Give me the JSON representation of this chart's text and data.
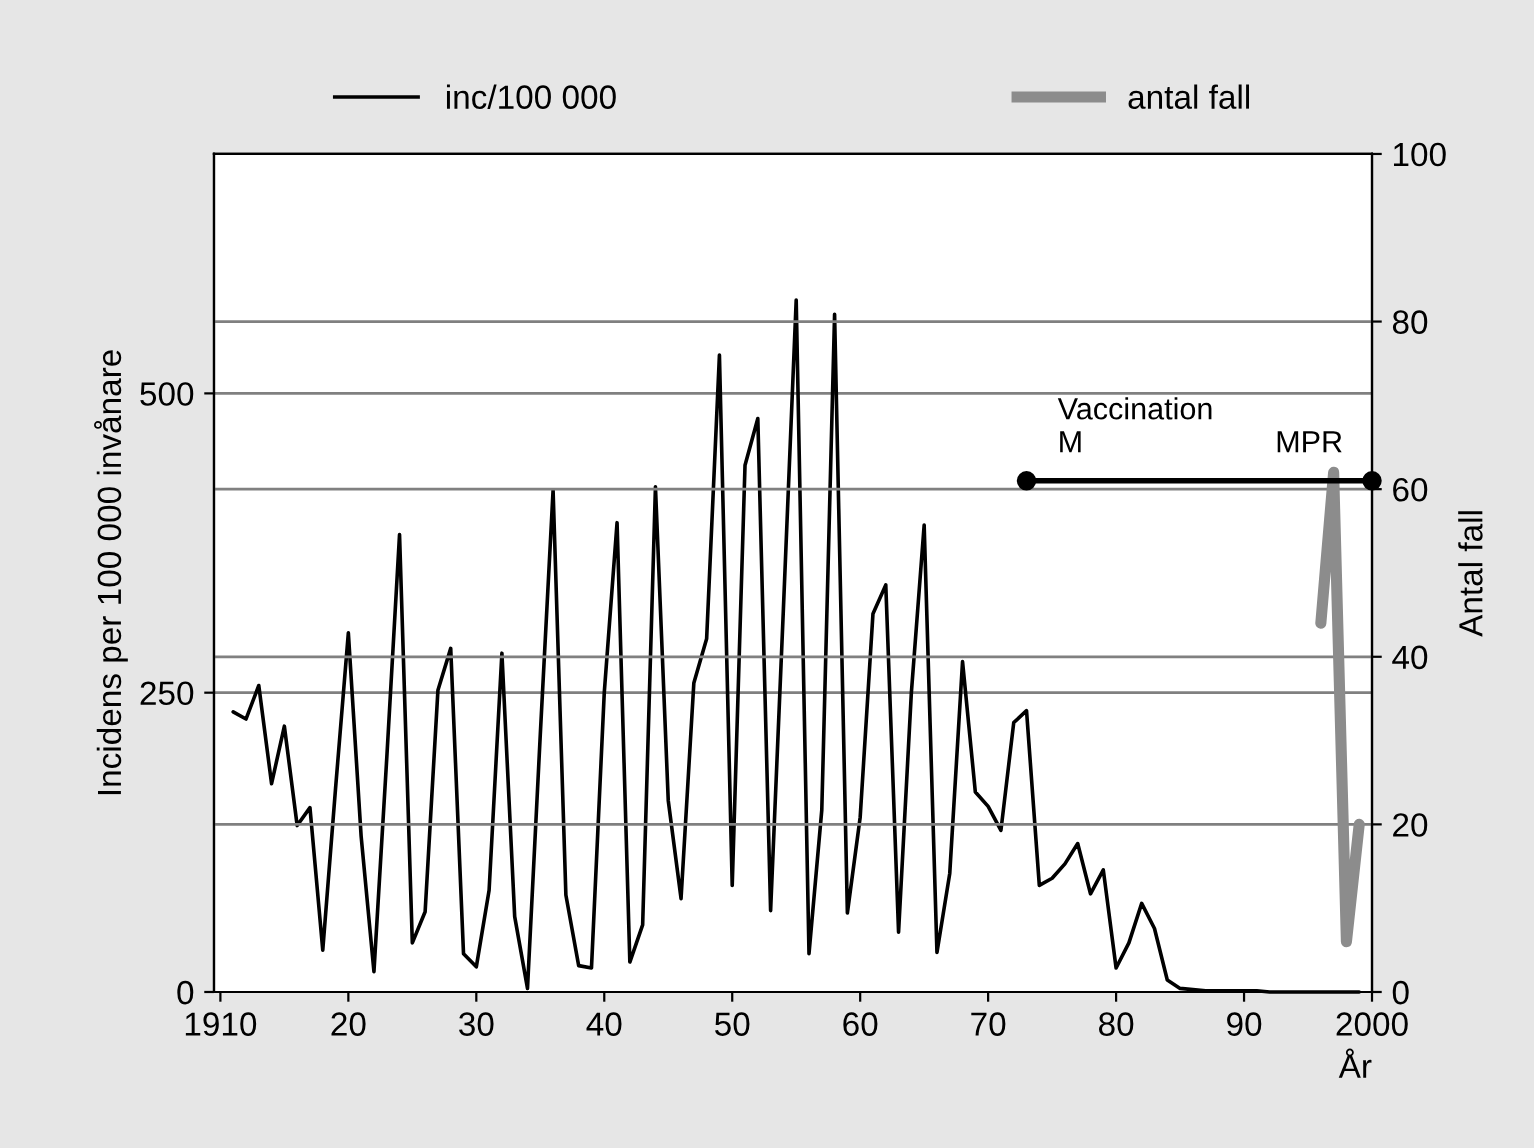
{
  "chart_data": {
    "type": "line",
    "ylabel": "Incidens per 100 000 invånare",
    "y2label": "Antal fall",
    "xlabel": "År",
    "xlim": [
      1909.5,
      2000
    ],
    "xticks": [
      {
        "value": 1910,
        "label": "1910"
      },
      {
        "value": 1920,
        "label": "20"
      },
      {
        "value": 1930,
        "label": "30"
      },
      {
        "value": 1940,
        "label": "40"
      },
      {
        "value": 1950,
        "label": "50"
      },
      {
        "value": 1960,
        "label": "60"
      },
      {
        "value": 1970,
        "label": "70"
      },
      {
        "value": 1980,
        "label": "80"
      },
      {
        "value": 1990,
        "label": "90"
      },
      {
        "value": 2000,
        "label": "2000"
      }
    ],
    "ylim": [
      0,
      700
    ],
    "yticks": [
      0,
      250,
      500
    ],
    "y2lim": [
      0,
      100
    ],
    "y2ticks": [
      0,
      20,
      40,
      60,
      80,
      100
    ],
    "ref_lines": [
      {
        "axis": "y",
        "value": 250,
        "color": "#808080"
      },
      {
        "axis": "y",
        "value": 500,
        "color": "#808080"
      },
      {
        "axis": "y2",
        "value": 20,
        "color": "#808080"
      },
      {
        "axis": "y2",
        "value": 40,
        "color": "#808080"
      },
      {
        "axis": "y2",
        "value": 60,
        "color": "#808080"
      },
      {
        "axis": "y2",
        "value": 80,
        "color": "#808080"
      }
    ],
    "legend": "top",
    "marker": "none",
    "line_style": "solid",
    "series": [
      {
        "name": "inc/100 000",
        "color": "#000000",
        "x": [
          1911,
          1912,
          1913,
          1914,
          1915,
          1916,
          1917,
          1918,
          1919,
          1920,
          1921,
          1922,
          1923,
          1924,
          1925,
          1926,
          1927,
          1928,
          1929,
          1930,
          1931,
          1932,
          1933,
          1934,
          1935,
          1936,
          1937,
          1938,
          1939,
          1940,
          1941,
          1942,
          1943,
          1944,
          1945,
          1946,
          1947,
          1948,
          1949,
          1950,
          1951,
          1952,
          1953,
          1954,
          1955,
          1956,
          1957,
          1958,
          1959,
          1960,
          1961,
          1962,
          1963,
          1964,
          1965,
          1966,
          1967,
          1968,
          1969,
          1970,
          1971,
          1972,
          1973,
          1974,
          1975,
          1976,
          1977,
          1978,
          1979,
          1980,
          1981,
          1982,
          1983,
          1984,
          1985,
          1986,
          1987,
          1988,
          1989,
          1990,
          1991,
          1992,
          1993,
          1994,
          1995,
          1996,
          1997,
          1998,
          1999
        ],
        "values": [
          234,
          228,
          256,
          174,
          222,
          139,
          154,
          35,
          170,
          300,
          130,
          17,
          195,
          382,
          41,
          67,
          252,
          287,
          32,
          21,
          85,
          283,
          63,
          3,
          215,
          419,
          81,
          22,
          20,
          250,
          392,
          25,
          56,
          422,
          160,
          78,
          258,
          295,
          532,
          89,
          440,
          479,
          68,
          320,
          578,
          32,
          152,
          566,
          66,
          146,
          316,
          340,
          50,
          250,
          390,
          33,
          99,
          276,
          167,
          155,
          135,
          225,
          235,
          89,
          95,
          107,
          124,
          82,
          102,
          20,
          41,
          74,
          53,
          10,
          3,
          2,
          1,
          1,
          1,
          1,
          1,
          0,
          0,
          0,
          0,
          0,
          0,
          0,
          0
        ]
      },
      {
        "name": "antal fall",
        "color": "#8c8c8c",
        "axis": "y2",
        "x": [
          1996,
          1997,
          1998,
          1999
        ],
        "values": [
          44,
          62,
          6,
          20
        ]
      },
      {
        "color": "#000000",
        "axis": "y2",
        "marker": "circle",
        "x": [
          1973,
          2000
        ],
        "values": [
          61,
          61
        ]
      }
    ],
    "annotations": [
      {
        "text": "Vaccination\nM",
        "x": 1975,
        "y": 427
      },
      {
        "text": "MPR",
        "x": 1992,
        "y": 427
      }
    ]
  }
}
